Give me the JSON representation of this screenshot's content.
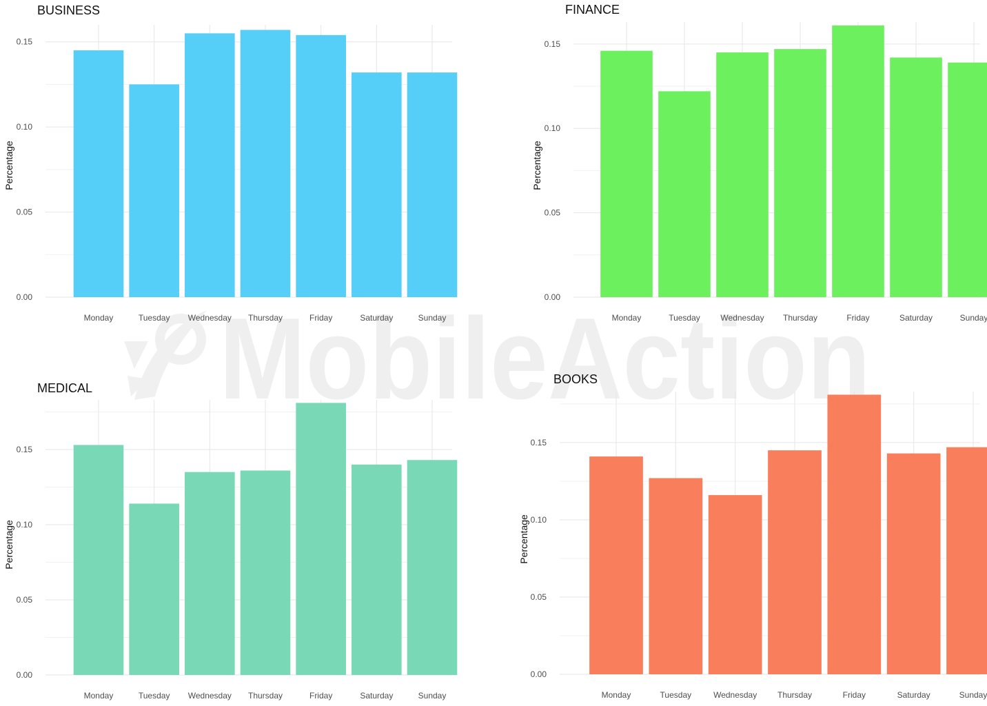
{
  "watermark": {
    "text": "MobileAction",
    "icon": "rocket-icon"
  },
  "chart_data": [
    {
      "type": "bar",
      "title": "BUSINESS",
      "ylabel": "Percentage",
      "xlabel": "",
      "color": "#56cff8",
      "categories": [
        "Monday",
        "Tuesday",
        "Wednesday",
        "Thursday",
        "Friday",
        "Saturday",
        "Sunday"
      ],
      "values": [
        0.145,
        0.125,
        0.155,
        0.157,
        0.154,
        0.132,
        0.132
      ],
      "yticks": [
        "0.00",
        "0.05",
        "0.10",
        "0.15"
      ],
      "ylim": [
        0,
        0.16
      ],
      "grid": true
    },
    {
      "type": "bar",
      "title": "FINANCE",
      "ylabel": "Percentage",
      "xlabel": "",
      "color": "#6cf05e",
      "categories": [
        "Monday",
        "Tuesday",
        "Wednesday",
        "Thursday",
        "Friday",
        "Saturday",
        "Sunday"
      ],
      "values": [
        0.146,
        0.122,
        0.145,
        0.147,
        0.161,
        0.142,
        0.139
      ],
      "yticks": [
        "0.00",
        "0.05",
        "0.10",
        "0.15"
      ],
      "ylim": [
        0,
        0.163
      ],
      "grid": true
    },
    {
      "type": "bar",
      "title": "MEDICAL",
      "ylabel": "Percentage",
      "xlabel": "",
      "color": "#79d9b6",
      "categories": [
        "Monday",
        "Tuesday",
        "Wednesday",
        "Thursday",
        "Friday",
        "Saturday",
        "Sunday"
      ],
      "values": [
        0.153,
        0.114,
        0.135,
        0.136,
        0.181,
        0.14,
        0.143
      ],
      "yticks": [
        "0.00",
        "0.05",
        "0.10",
        "0.15"
      ],
      "ylim": [
        0,
        0.183
      ],
      "grid": true
    },
    {
      "type": "bar",
      "title": "BOOKS",
      "ylabel": "Percentage",
      "xlabel": "",
      "color": "#f97e5c",
      "categories": [
        "Monday",
        "Tuesday",
        "Wednesday",
        "Thursday",
        "Friday",
        "Saturday",
        "Sunday"
      ],
      "values": [
        0.141,
        0.127,
        0.116,
        0.145,
        0.181,
        0.143,
        0.147
      ],
      "yticks": [
        "0.00",
        "0.05",
        "0.10",
        "0.15"
      ],
      "ylim": [
        0,
        0.183
      ],
      "grid": true
    }
  ]
}
